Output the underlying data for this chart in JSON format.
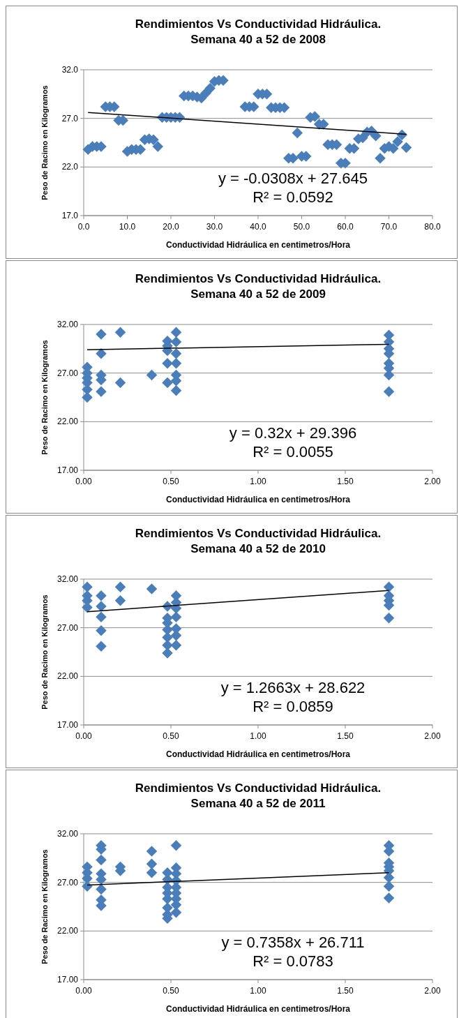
{
  "chart_data": [
    {
      "type": "scatter",
      "title": "Rendimientos Vs Conductividad Hidráulica.",
      "subtitle": "Semana 40 a  52 de 2008",
      "xlabel": "Conductividad Hidráulica en centimetros/Hora",
      "ylabel": "Peso de Racimo en Kilogramos",
      "xlim": [
        0,
        80
      ],
      "ylim": [
        17,
        32
      ],
      "xticks": [
        {
          "value": 0,
          "label": "0.0"
        },
        {
          "value": 10,
          "label": "10.0"
        },
        {
          "value": 20,
          "label": "20.0"
        },
        {
          "value": 30,
          "label": "30.0"
        },
        {
          "value": 40,
          "label": "40.0"
        },
        {
          "value": 50,
          "label": "50.0"
        },
        {
          "value": 60,
          "label": "60.0"
        },
        {
          "value": 70,
          "label": "70.0"
        },
        {
          "value": 80,
          "label": "80.0"
        }
      ],
      "yticks": [
        {
          "value": 17,
          "label": "17.0"
        },
        {
          "value": 22,
          "label": "22.0"
        },
        {
          "value": 27,
          "label": "27.0"
        },
        {
          "value": 32,
          "label": "32.0"
        }
      ],
      "grid": "y",
      "marker": "diamond",
      "annotations": [
        "y = -0.0308x + 27.645",
        "R² = 0.0592"
      ],
      "series": [
        {
          "color": "#4a7ebb",
          "x": [
            1,
            2,
            3,
            4,
            5,
            6,
            7,
            8,
            9,
            10,
            11,
            12,
            13,
            14,
            15,
            16,
            17,
            18,
            19,
            20,
            21,
            22,
            23,
            24,
            25,
            26,
            27,
            28,
            29,
            30,
            31,
            32,
            37,
            38,
            39,
            40,
            41,
            42,
            43,
            44,
            45,
            46,
            47,
            48,
            49,
            50,
            51,
            52,
            53,
            54,
            55,
            56,
            57,
            58,
            59,
            60,
            61,
            62,
            63,
            64,
            65,
            66,
            67,
            68,
            69,
            70,
            71,
            72,
            73,
            74
          ],
          "values": [
            23.8,
            24.1,
            24.1,
            24.1,
            28.2,
            28.2,
            28.2,
            26.8,
            26.8,
            23.6,
            23.8,
            23.8,
            23.8,
            24.8,
            24.9,
            24.8,
            24.1,
            27.1,
            27.1,
            27.1,
            27.1,
            27.1,
            29.3,
            29.3,
            29.3,
            29.2,
            29.1,
            29.6,
            30.1,
            30.8,
            30.9,
            30.9,
            28.2,
            28.2,
            28.2,
            29.5,
            29.5,
            29.5,
            28.1,
            28.1,
            28.1,
            28.1,
            22.9,
            22.9,
            25.5,
            23.1,
            23.1,
            27.1,
            27.2,
            26.4,
            26.4,
            24.3,
            24.3,
            24.3,
            22.4,
            22.4,
            23.9,
            23.9,
            24.9,
            25.0,
            25.6,
            25.7,
            25.2,
            22.9,
            23.9,
            24.1,
            23.9,
            24.6,
            25.3,
            24.0
          ]
        },
        {
          "type": "line",
          "color": "#000000",
          "marker": "none",
          "x": [
            1,
            74
          ],
          "values": [
            27.61,
            25.37
          ]
        }
      ]
    },
    {
      "type": "scatter",
      "title": "Rendimientos Vs Conductividad Hidráulica.",
      "subtitle": "Semana  40 a 52 de 2009",
      "xlabel": "Conductividad Hidráulica en centimetros/Hora",
      "ylabel": "Peso de Racimo en Kilogramos",
      "xlim": [
        0,
        2
      ],
      "ylim": [
        17,
        32
      ],
      "xticks": [
        {
          "value": 0,
          "label": "0.00"
        },
        {
          "value": 0.5,
          "label": "0.50"
        },
        {
          "value": 1,
          "label": "1.00"
        },
        {
          "value": 1.5,
          "label": "1.50"
        },
        {
          "value": 2,
          "label": "2.00"
        }
      ],
      "yticks": [
        {
          "value": 17,
          "label": "17.00"
        },
        {
          "value": 22,
          "label": "22.00"
        },
        {
          "value": 27,
          "label": "27.00"
        },
        {
          "value": 32,
          "label": "32.00"
        }
      ],
      "grid": "y",
      "marker": "diamond",
      "annotations": [
        "y = 0.32x + 29.396",
        "R² = 0.0055"
      ],
      "series": [
        {
          "color": "#4a7ebb",
          "x": [
            0.02,
            0.02,
            0.02,
            0.02,
            0.02,
            0.02,
            0.1,
            0.1,
            0.1,
            0.1,
            0.1,
            0.21,
            0.21,
            0.39,
            0.48,
            0.48,
            0.48,
            0.48,
            0.48,
            0.53,
            0.53,
            0.53,
            0.53,
            0.53,
            0.53,
            0.53,
            1.75,
            1.75,
            1.75,
            1.75,
            1.75,
            1.75,
            1.75,
            1.75
          ],
          "values": [
            27.6,
            27.0,
            26.5,
            26.0,
            25.3,
            24.5,
            31.0,
            29.0,
            26.8,
            26.3,
            25.1,
            31.2,
            26.0,
            26.8,
            30.3,
            29.8,
            29.3,
            28.0,
            26.0,
            31.2,
            30.2,
            29.0,
            28.0,
            26.8,
            26.2,
            25.2,
            30.9,
            30.2,
            29.5,
            29.0,
            28.0,
            27.5,
            26.8,
            25.1
          ]
        },
        {
          "type": "line",
          "color": "#000000",
          "marker": "none",
          "x": [
            0.02,
            1.75
          ],
          "values": [
            29.4,
            29.96
          ]
        }
      ]
    },
    {
      "type": "scatter",
      "title": "Rendimientos Vs Conductividad Hidráulica.",
      "subtitle": "Semana 40 a 52 de 2010",
      "xlabel": "Conductividad Hidráulica en centimetros/Hora",
      "ylabel": "Peso de Racimo en Kilogramos",
      "xlim": [
        0,
        2
      ],
      "ylim": [
        17,
        32
      ],
      "xticks": [
        {
          "value": 0,
          "label": "0.00"
        },
        {
          "value": 0.5,
          "label": "0.50"
        },
        {
          "value": 1,
          "label": "1.00"
        },
        {
          "value": 1.5,
          "label": "1.50"
        },
        {
          "value": 2,
          "label": "2.00"
        }
      ],
      "yticks": [
        {
          "value": 17,
          "label": "17.00"
        },
        {
          "value": 22,
          "label": "22.00"
        },
        {
          "value": 27,
          "label": "27.00"
        },
        {
          "value": 32,
          "label": "32.00"
        }
      ],
      "grid": "y",
      "marker": "diamond",
      "annotations": [
        "y = 1.2663x + 28.622",
        "R² = 0.0859"
      ],
      "series": [
        {
          "color": "#4a7ebb",
          "x": [
            0.02,
            0.02,
            0.02,
            0.02,
            0.1,
            0.1,
            0.1,
            0.1,
            0.1,
            0.21,
            0.21,
            0.39,
            0.48,
            0.48,
            0.48,
            0.48,
            0.48,
            0.48,
            0.48,
            0.53,
            0.53,
            0.53,
            0.53,
            0.53,
            0.53,
            0.53,
            1.75,
            1.75,
            1.75,
            1.75,
            1.75
          ],
          "values": [
            31.2,
            30.3,
            29.8,
            29.1,
            30.3,
            29.2,
            28.1,
            26.7,
            25.1,
            31.2,
            29.8,
            31.0,
            29.2,
            28.0,
            27.5,
            26.8,
            26.0,
            25.2,
            24.4,
            30.3,
            29.6,
            29.0,
            28.1,
            26.9,
            26.2,
            25.2,
            31.2,
            30.3,
            29.8,
            29.3,
            28.0
          ]
        },
        {
          "type": "line",
          "color": "#000000",
          "marker": "none",
          "x": [
            0.02,
            1.75
          ],
          "values": [
            28.65,
            30.84
          ]
        }
      ]
    },
    {
      "type": "scatter",
      "title": "Rendimientos Vs Conductividad Hidráulica.",
      "subtitle": "Semana 40 a 52  de 2011",
      "xlabel": "Conductividad Hidráulica en centimetros/Hora",
      "ylabel": "Peso de Racimo en Kilogramos",
      "xlim": [
        0,
        2
      ],
      "ylim": [
        17,
        32
      ],
      "xticks": [
        {
          "value": 0,
          "label": "0.00"
        },
        {
          "value": 0.5,
          "label": "0.50"
        },
        {
          "value": 1,
          "label": "1.00"
        },
        {
          "value": 1.5,
          "label": "1.50"
        },
        {
          "value": 2,
          "label": "2.00"
        }
      ],
      "yticks": [
        {
          "value": 17,
          "label": "17.00"
        },
        {
          "value": 22,
          "label": "22.00"
        },
        {
          "value": 27,
          "label": "27.00"
        },
        {
          "value": 32,
          "label": "32.00"
        }
      ],
      "grid": "y",
      "marker": "diamond",
      "annotations": [
        "y = 0.7358x + 26.711",
        "R² = 0.0783"
      ],
      "series": [
        {
          "color": "#4a7ebb",
          "x": [
            0.02,
            0.02,
            0.02,
            0.02,
            0.1,
            0.1,
            0.1,
            0.1,
            0.1,
            0.1,
            0.1,
            0.1,
            0.21,
            0.21,
            0.39,
            0.39,
            0.39,
            0.48,
            0.48,
            0.48,
            0.48,
            0.48,
            0.48,
            0.48,
            0.48,
            0.53,
            0.53,
            0.53,
            0.53,
            0.53,
            0.53,
            0.53,
            0.53,
            0.53,
            1.75,
            1.75,
            1.75,
            1.75,
            1.75,
            1.75,
            1.75,
            1.75
          ],
          "values": [
            28.6,
            28.0,
            27.4,
            26.6,
            30.8,
            30.4,
            29.3,
            27.9,
            27.3,
            26.3,
            25.2,
            24.6,
            28.6,
            28.2,
            30.2,
            28.9,
            28.0,
            28.0,
            27.3,
            26.5,
            25.9,
            25.3,
            24.4,
            23.7,
            23.3,
            30.8,
            28.5,
            27.9,
            27.2,
            26.5,
            25.9,
            25.3,
            24.7,
            23.9,
            30.8,
            30.2,
            29.0,
            28.6,
            28.2,
            27.5,
            26.6,
            25.4
          ]
        },
        {
          "type": "line",
          "color": "#000000",
          "marker": "none",
          "x": [
            0.02,
            1.75
          ],
          "values": [
            26.73,
            28.0
          ]
        }
      ]
    }
  ]
}
